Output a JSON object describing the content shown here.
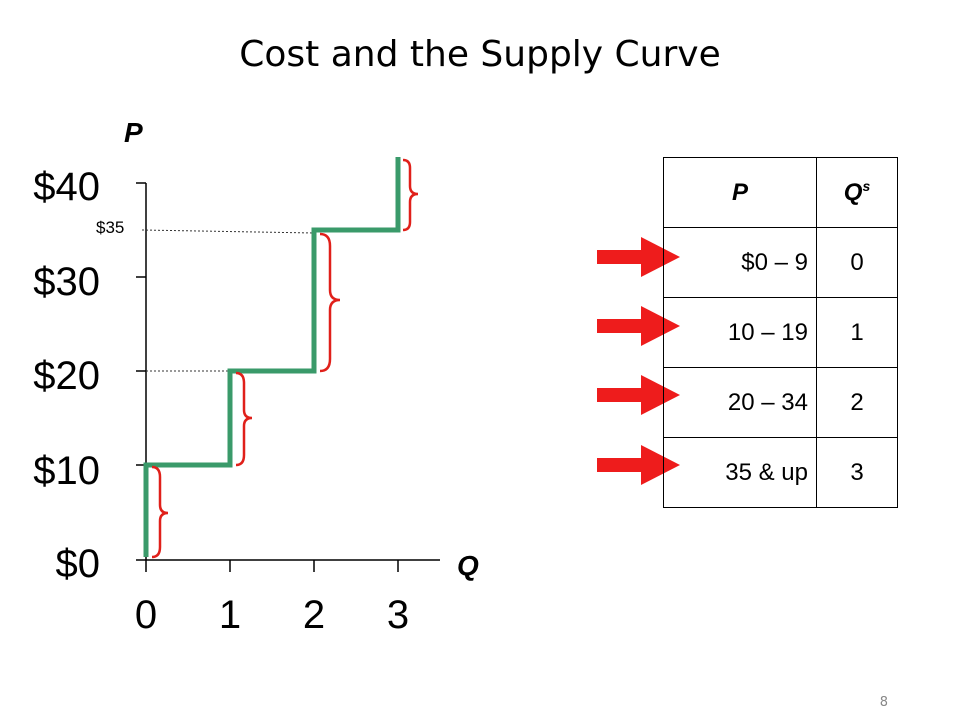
{
  "title": "Cost and the Supply Curve",
  "graph": {
    "y_axis_label": "P",
    "x_axis_label": "Q",
    "y_ticks": [
      "$0",
      "$10",
      "$20",
      "$30",
      "$40"
    ],
    "x_ticks": [
      "0",
      "1",
      "2",
      "3"
    ],
    "annotation_35": "$35"
  },
  "table": {
    "header_p": "P",
    "header_q": "Q",
    "header_q_sup": "s",
    "rows": [
      {
        "p": "$0 – 9",
        "q": "0"
      },
      {
        "p": "10 – 19",
        "q": "1"
      },
      {
        "p": "20 – 34",
        "q": "2"
      },
      {
        "p": "35 & up",
        "q": "3"
      }
    ]
  },
  "colors": {
    "supply_curve": "#3a9a6a",
    "brace": "#e0201a",
    "arrow": "#ee1c1c",
    "guide": "#333333"
  },
  "page_number": "8"
}
